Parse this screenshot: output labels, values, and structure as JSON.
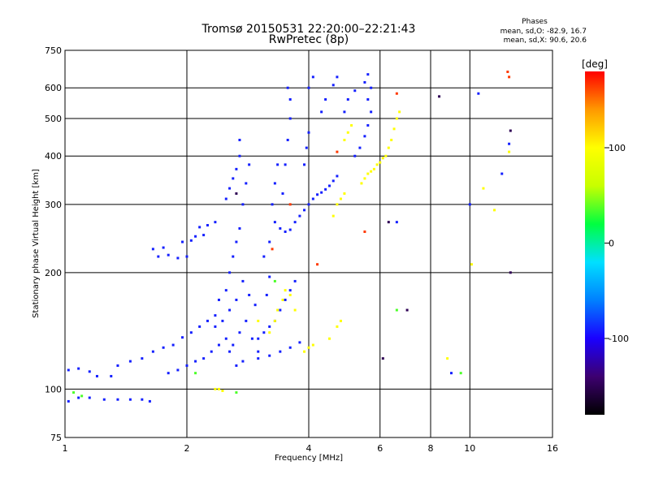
{
  "chart_data": {
    "type": "scatter",
    "title": "Tromsø 20150531 22:20:00–22:21:43",
    "subtitle": "RwPretec (8p)",
    "xlabel": "Frequency [MHz]",
    "ylabel": "Stationary phase Virtual Height [km]",
    "x_scale": "log",
    "y_scale": "log",
    "xlim": [
      1,
      16
    ],
    "ylim": [
      75,
      750
    ],
    "x_ticks": [
      1,
      2,
      4,
      6,
      8,
      10,
      16
    ],
    "x_tick_labels": [
      "1",
      "2",
      "4",
      "6",
      "8",
      "10",
      "16"
    ],
    "y_ticks": [
      75,
      100,
      200,
      300,
      400,
      500,
      600,
      750
    ],
    "y_tick_labels": [
      "75",
      "100",
      "200",
      "300",
      "400",
      "500",
      "600",
      "750"
    ],
    "grid": true,
    "stats": {
      "heading": "Phases",
      "line_o": "mean, sd,O:  -82.9,  16.7",
      "line_x": "mean, sd,X:   90.6,  20.6"
    },
    "colorbar": {
      "label": "[deg]",
      "ticks": [
        100,
        0,
        -100
      ],
      "tick_labels": [
        "100",
        "0",
        "-100"
      ],
      "range": [
        -180,
        180
      ],
      "colors": [
        "#000000",
        "#3d0070",
        "#1a00ff",
        "#0080ff",
        "#00e0ff",
        "#00ff40",
        "#c8ff00",
        "#ffff00",
        "#ff9900",
        "#ff0000"
      ]
    },
    "series": [
      {
        "phase_deg": -90,
        "points": [
          [
            1.02,
            93
          ],
          [
            1.08,
            95
          ],
          [
            1.15,
            95
          ],
          [
            1.25,
            94
          ],
          [
            1.35,
            94
          ],
          [
            1.45,
            94
          ],
          [
            1.55,
            94
          ],
          [
            1.62,
            93
          ],
          [
            1.02,
            112
          ],
          [
            1.08,
            113
          ],
          [
            1.15,
            111
          ],
          [
            1.2,
            108
          ],
          [
            1.3,
            108
          ],
          [
            1.35,
            115
          ],
          [
            1.45,
            118
          ],
          [
            1.55,
            120
          ],
          [
            1.65,
            125
          ],
          [
            1.75,
            128
          ],
          [
            1.85,
            130
          ],
          [
            1.95,
            136
          ],
          [
            2.05,
            140
          ],
          [
            2.15,
            145
          ],
          [
            2.25,
            150
          ],
          [
            2.35,
            155
          ],
          [
            1.8,
            110
          ],
          [
            1.9,
            112
          ],
          [
            2.0,
            115
          ],
          [
            2.1,
            118
          ],
          [
            2.2,
            120
          ],
          [
            2.3,
            125
          ],
          [
            2.4,
            130
          ],
          [
            2.5,
            135
          ],
          [
            1.7,
            220
          ],
          [
            1.8,
            222
          ],
          [
            1.9,
            218
          ],
          [
            2.0,
            220
          ],
          [
            1.95,
            240
          ],
          [
            2.05,
            242
          ],
          [
            2.1,
            248
          ],
          [
            2.2,
            250
          ],
          [
            1.65,
            230
          ],
          [
            1.75,
            232
          ],
          [
            2.15,
            262
          ],
          [
            2.25,
            265
          ],
          [
            2.35,
            270
          ],
          [
            2.5,
            180
          ],
          [
            2.55,
            200
          ],
          [
            2.6,
            220
          ],
          [
            2.65,
            240
          ],
          [
            2.7,
            260
          ],
          [
            2.75,
            300
          ],
          [
            2.8,
            340
          ],
          [
            2.85,
            380
          ],
          [
            2.55,
            160
          ],
          [
            2.65,
            170
          ],
          [
            2.75,
            190
          ],
          [
            2.85,
            175
          ],
          [
            2.95,
            165
          ],
          [
            2.45,
            150
          ],
          [
            2.4,
            170
          ],
          [
            2.35,
            145
          ],
          [
            2.6,
            130
          ],
          [
            2.7,
            140
          ],
          [
            2.8,
            150
          ],
          [
            2.9,
            135
          ],
          [
            3.0,
            125
          ],
          [
            2.55,
            125
          ],
          [
            2.65,
            115
          ],
          [
            2.75,
            118
          ],
          [
            2.5,
            310
          ],
          [
            2.55,
            330
          ],
          [
            2.6,
            350
          ],
          [
            2.65,
            370
          ],
          [
            2.7,
            400
          ],
          [
            2.7,
            440
          ],
          [
            3.3,
            270
          ],
          [
            3.4,
            260
          ],
          [
            3.5,
            255
          ],
          [
            3.6,
            258
          ],
          [
            3.7,
            270
          ],
          [
            3.8,
            280
          ],
          [
            3.9,
            290
          ],
          [
            4.0,
            300
          ],
          [
            4.1,
            310
          ],
          [
            4.2,
            318
          ],
          [
            4.3,
            322
          ],
          [
            4.4,
            328
          ],
          [
            4.5,
            335
          ],
          [
            4.6,
            345
          ],
          [
            4.7,
            355
          ],
          [
            3.0,
            135
          ],
          [
            3.1,
            140
          ],
          [
            3.2,
            145
          ],
          [
            3.3,
            150
          ],
          [
            3.4,
            160
          ],
          [
            3.5,
            170
          ],
          [
            3.6,
            180
          ],
          [
            3.7,
            190
          ],
          [
            3.0,
            120
          ],
          [
            3.2,
            122
          ],
          [
            3.4,
            125
          ],
          [
            3.6,
            128
          ],
          [
            3.8,
            132
          ],
          [
            3.45,
            320
          ],
          [
            3.5,
            380
          ],
          [
            3.55,
            440
          ],
          [
            3.6,
            500
          ],
          [
            3.6,
            560
          ],
          [
            3.55,
            600
          ],
          [
            3.9,
            380
          ],
          [
            3.95,
            420
          ],
          [
            4.0,
            460
          ],
          [
            4.3,
            520
          ],
          [
            4.4,
            560
          ],
          [
            4.6,
            610
          ],
          [
            4.7,
            640
          ],
          [
            4.0,
            600
          ],
          [
            4.1,
            640
          ],
          [
            4.9,
            520
          ],
          [
            5.0,
            560
          ],
          [
            5.2,
            590
          ],
          [
            5.5,
            620
          ],
          [
            5.6,
            650
          ],
          [
            5.5,
            450
          ],
          [
            5.6,
            480
          ],
          [
            5.7,
            520
          ],
          [
            5.6,
            560
          ],
          [
            5.7,
            600
          ],
          [
            5.2,
            400
          ],
          [
            5.35,
            420
          ],
          [
            3.1,
            220
          ],
          [
            3.2,
            240
          ],
          [
            3.25,
            300
          ],
          [
            3.3,
            340
          ],
          [
            3.35,
            380
          ],
          [
            3.2,
            195
          ],
          [
            3.15,
            175
          ],
          [
            9.0,
            110
          ],
          [
            10.0,
            300
          ],
          [
            10.5,
            580
          ],
          [
            12.0,
            360
          ],
          [
            12.5,
            430
          ],
          [
            6.6,
            270
          ]
        ]
      },
      {
        "phase_deg": 100,
        "points": [
          [
            3.2,
            140
          ],
          [
            3.3,
            150
          ],
          [
            3.35,
            160
          ],
          [
            3.45,
            170
          ],
          [
            3.5,
            180
          ],
          [
            3.6,
            175
          ],
          [
            3.7,
            160
          ],
          [
            3.9,
            125
          ],
          [
            4.0,
            128
          ],
          [
            4.1,
            130
          ],
          [
            4.5,
            135
          ],
          [
            4.7,
            145
          ],
          [
            4.8,
            150
          ],
          [
            4.6,
            280
          ],
          [
            4.7,
            300
          ],
          [
            4.8,
            310
          ],
          [
            4.9,
            320
          ],
          [
            5.0,
            460
          ],
          [
            5.1,
            480
          ],
          [
            4.9,
            440
          ],
          [
            5.4,
            340
          ],
          [
            5.5,
            350
          ],
          [
            5.6,
            360
          ],
          [
            5.7,
            365
          ],
          [
            5.8,
            370
          ],
          [
            5.9,
            380
          ],
          [
            6.0,
            385
          ],
          [
            6.1,
            395
          ],
          [
            6.2,
            400
          ],
          [
            6.3,
            420
          ],
          [
            6.4,
            440
          ],
          [
            6.5,
            470
          ],
          [
            6.6,
            500
          ],
          [
            6.7,
            520
          ],
          [
            2.35,
            100
          ],
          [
            2.4,
            100
          ],
          [
            2.45,
            99
          ],
          [
            3.0,
            150
          ],
          [
            8.8,
            120
          ],
          [
            10.1,
            210
          ],
          [
            10.8,
            330
          ],
          [
            11.5,
            290
          ],
          [
            12.5,
            410
          ]
        ]
      },
      {
        "phase_deg": 35,
        "points": [
          [
            1.05,
            98
          ],
          [
            1.1,
            96
          ],
          [
            2.1,
            110
          ],
          [
            2.65,
            98
          ],
          [
            3.3,
            190
          ],
          [
            6.6,
            160
          ],
          [
            9.5,
            110
          ]
        ]
      },
      {
        "phase_deg": 165,
        "points": [
          [
            3.6,
            300
          ],
          [
            4.2,
            210
          ],
          [
            5.5,
            255
          ],
          [
            6.6,
            580
          ],
          [
            12.4,
            660
          ],
          [
            12.5,
            640
          ],
          [
            3.25,
            230
          ],
          [
            4.7,
            410
          ]
        ]
      },
      {
        "phase_deg": -150,
        "points": [
          [
            6.3,
            270
          ],
          [
            7.0,
            160
          ],
          [
            6.1,
            120
          ],
          [
            12.6,
            200
          ],
          [
            12.6,
            465
          ],
          [
            8.4,
            570
          ],
          [
            2.65,
            320
          ]
        ]
      }
    ]
  }
}
